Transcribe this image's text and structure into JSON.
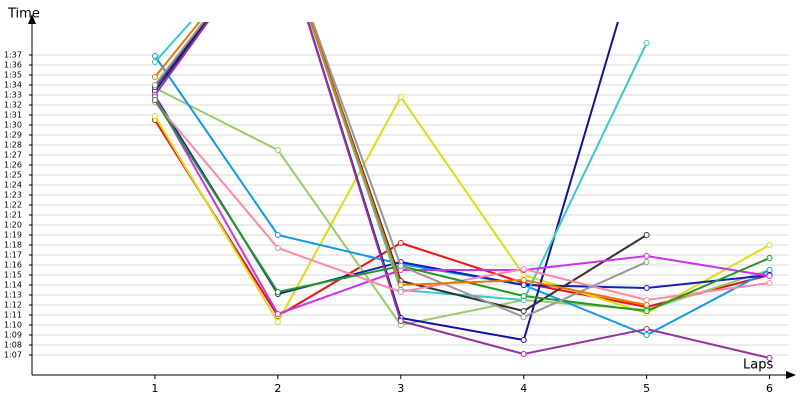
{
  "chart_data": {
    "type": "line",
    "x_label": "Laps",
    "y_label": "Time",
    "x": [
      1,
      2,
      3,
      4,
      5,
      6
    ],
    "xlim": [
      0,
      6.15
    ],
    "xticks": [
      1,
      2,
      3,
      4,
      5,
      6
    ],
    "ylim": [
      65,
      100.5
    ],
    "grid": true,
    "yticks": [
      {
        "value": 67,
        "label": "1:07"
      },
      {
        "value": 68,
        "label": "1:08"
      },
      {
        "value": 69,
        "label": "1:09"
      },
      {
        "value": 70,
        "label": "1:10"
      },
      {
        "value": 71,
        "label": "1:11"
      },
      {
        "value": 72,
        "label": "1:12"
      },
      {
        "value": 73,
        "label": "1:13"
      },
      {
        "value": 74,
        "label": "1:14"
      },
      {
        "value": 75,
        "label": "1:15"
      },
      {
        "value": 76,
        "label": "1:16"
      },
      {
        "value": 77,
        "label": "1:17"
      },
      {
        "value": 78,
        "label": "1:18"
      },
      {
        "value": 79,
        "label": "1:19"
      },
      {
        "value": 80,
        "label": "1:20"
      },
      {
        "value": 81,
        "label": "1:21"
      },
      {
        "value": 82,
        "label": "1:22"
      },
      {
        "value": 83,
        "label": "1:23"
      },
      {
        "value": 84,
        "label": "1:24"
      },
      {
        "value": 85,
        "label": "1:25"
      },
      {
        "value": 86,
        "label": "1:26"
      },
      {
        "value": 87,
        "label": "1:27"
      },
      {
        "value": 88,
        "label": "1:28"
      },
      {
        "value": 89,
        "label": "1:29"
      },
      {
        "value": 90,
        "label": "1:30"
      },
      {
        "value": 91,
        "label": "1:31"
      },
      {
        "value": 92,
        "label": "1:32"
      },
      {
        "value": 93,
        "label": "1:33"
      },
      {
        "value": 94,
        "label": "1:34"
      },
      {
        "value": 95,
        "label": "1:35"
      },
      {
        "value": 96,
        "label": "1:36"
      },
      {
        "value": 97,
        "label": "1:37"
      }
    ],
    "series": [
      {
        "color": "#ee1111",
        "values": [
          90.5,
          70.9,
          78.2,
          74.2,
          71.8,
          75.0
        ]
      },
      {
        "color": "#dddd11",
        "values": [
          90.9,
          70.3,
          92.8,
          75.0,
          71.2,
          78.0
        ]
      },
      {
        "color": "#99cc66",
        "values": [
          93.7,
          87.5,
          70.0,
          72.5,
          71.5,
          75.5
        ]
      },
      {
        "color": "#1199ee",
        "values": [
          96.9,
          79.0,
          76.1,
          74.0,
          69.0,
          75.5
        ]
      },
      {
        "color": "#1122bb",
        "values": [
          92.9,
          73.1,
          76.3,
          74.0,
          73.7,
          75.0
        ]
      },
      {
        "color": "#1111aa",
        "values": [
          93.4,
          110,
          70.7,
          68.5,
          110,
          null
        ]
      },
      {
        "color": "#33cccc",
        "values": [
          96.3,
          110,
          73.5,
          72.5,
          98.2,
          null
        ]
      },
      {
        "color": "#333333",
        "values": [
          93.8,
          110,
          74.4,
          71.4,
          79.0,
          null
        ]
      },
      {
        "color": "#993399",
        "values": [
          93.0,
          110,
          70.4,
          67.1,
          69.6,
          66.7
        ]
      },
      {
        "color": "#cc33ee",
        "values": [
          92.8,
          71.1,
          75.5,
          75.5,
          76.9,
          74.9
        ]
      },
      {
        "color": "#ff88aa",
        "values": [
          92.3,
          77.7,
          73.3,
          75.6,
          72.5,
          74.2
        ]
      },
      {
        "color": "#229922",
        "values": [
          92.5,
          73.3,
          75.9,
          72.9,
          71.4,
          76.7
        ]
      },
      {
        "color": "#999999",
        "values": [
          94.0,
          110,
          75.9,
          70.8,
          76.3,
          null
        ]
      },
      {
        "color": "#ee7700",
        "values": [
          94.8,
          110,
          74.0,
          74.5,
          72.0,
          null
        ]
      }
    ]
  }
}
